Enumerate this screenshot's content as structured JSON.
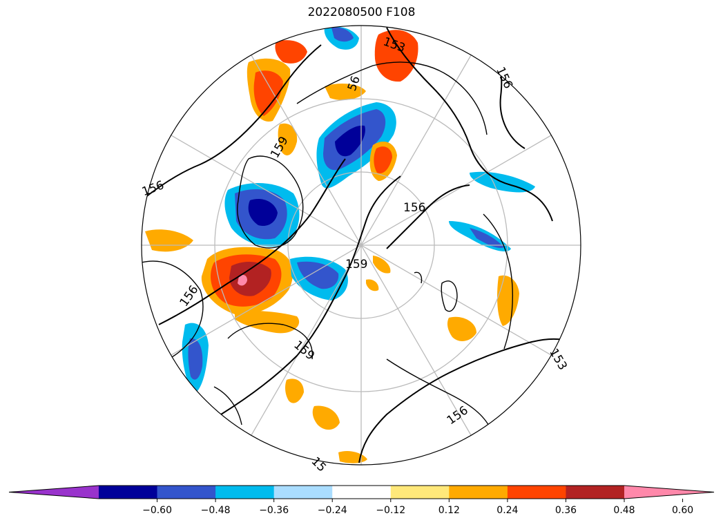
{
  "title": "2022080500 F108",
  "colorbar": {
    "extend": "both",
    "colors": [
      "#9933cc",
      "#000099",
      "#3355cc",
      "#00bbee",
      "#aaddff",
      "#ffffff",
      "#ffe87a",
      "#ffaa00",
      "#ff4400",
      "#b22222",
      "#ff88aa"
    ],
    "ticks": [
      "−0.60",
      "−0.48",
      "−0.36",
      "−0.24",
      "−0.12",
      "0.12",
      "0.24",
      "0.36",
      "0.48",
      "0.60"
    ]
  },
  "contour_labels": [
    "153",
    "153",
    "156",
    "156",
    "156",
    "156",
    "156",
    "159",
    "159",
    "159",
    "56",
    "15"
  ],
  "map": {
    "projection": "north-polar-stereographic",
    "graticule_color": "#bbbbbb",
    "contour_color": "#000000"
  }
}
